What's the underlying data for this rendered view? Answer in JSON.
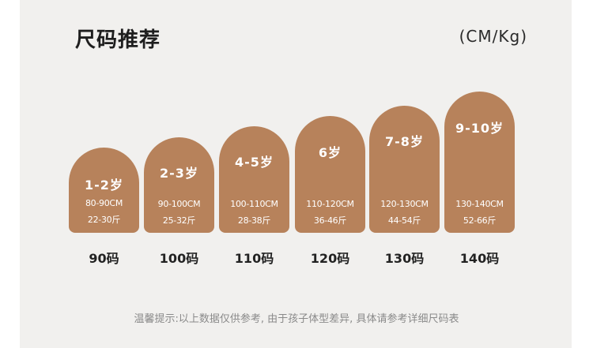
{
  "title": "尺码推荐",
  "unit": "(CM/Kg)",
  "sizes": [
    {
      "age": "1-2岁",
      "height": "80-90CM",
      "weight": "22-30斤",
      "size": "90码"
    },
    {
      "age": "2-3岁",
      "height": "90-100CM",
      "weight": "25-32斤",
      "size": "100码"
    },
    {
      "age": "4-5岁",
      "height": "100-110CM",
      "weight": "28-38斤",
      "size": "110码"
    },
    {
      "age": "6岁",
      "height": "110-120CM",
      "weight": "36-46斤",
      "size": "120码"
    },
    {
      "age": "7-8岁",
      "height": "120-130CM",
      "weight": "44-54斤",
      "size": "130码"
    },
    {
      "age": "9-10岁",
      "height": "130-140CM",
      "weight": "52-66斤",
      "size": "140码"
    }
  ],
  "note": "温馨提示:以上数据仅供参考, 由于孩子体型差异, 具体请参考详细尺码表",
  "colors": {
    "card": "#b7825b",
    "panel": "#f1f0ee"
  }
}
